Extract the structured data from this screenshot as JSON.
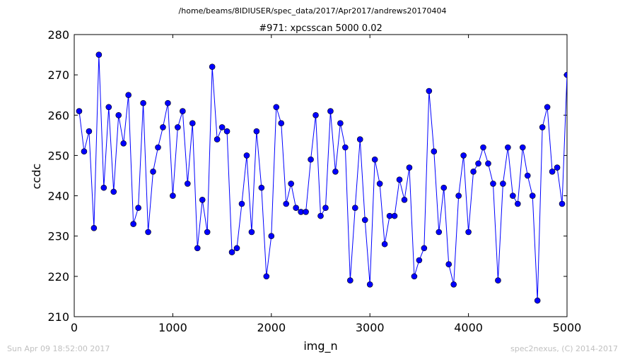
{
  "suptitle": "/home/beams/8IDIUSER/spec_data/2017/Apr2017/andrews20170404",
  "footer": {
    "left": "Sun Apr 09 18:52:00 2017",
    "right": "spec2nexus, (C) 2014-2017"
  },
  "colors": {
    "series": "#0000ff",
    "axes": "#000000",
    "footer": "#c0c0c0"
  },
  "chart_data": {
    "type": "line",
    "title": "#971: xpcsscan 5000 0.02",
    "xlabel": "img_n",
    "ylabel": "ccdc",
    "xlim": [
      0,
      5000
    ],
    "ylim": [
      210,
      280
    ],
    "xticks": [
      0,
      1000,
      2000,
      3000,
      4000,
      5000
    ],
    "yticks": [
      210,
      220,
      230,
      240,
      250,
      260,
      270,
      280
    ],
    "grid": false,
    "marker": "circle",
    "series": [
      {
        "x": [
          50,
          100,
          150,
          200,
          250,
          300,
          350,
          400,
          450,
          500,
          550,
          600,
          650,
          700,
          750,
          800,
          850,
          900,
          950,
          1000,
          1050,
          1100,
          1150,
          1200,
          1250,
          1300,
          1350,
          1400,
          1450,
          1500,
          1550,
          1600,
          1650,
          1700,
          1750,
          1800,
          1850,
          1900,
          1950,
          2000,
          2050,
          2100,
          2150,
          2200,
          2250,
          2300,
          2350,
          2400,
          2450,
          2500,
          2550,
          2600,
          2650,
          2700,
          2750,
          2800,
          2850,
          2900,
          2950,
          3000,
          3050,
          3100,
          3150,
          3200,
          3250,
          3300,
          3350,
          3400,
          3450,
          3500,
          3550,
          3600,
          3650,
          3700,
          3750,
          3800,
          3850,
          3900,
          3950,
          4000,
          4050,
          4100,
          4150,
          4200,
          4250,
          4300,
          4350,
          4400,
          4450,
          4500,
          4550,
          4600,
          4650,
          4700,
          4750,
          4800,
          4850,
          4900,
          4950,
          5000
        ],
        "y": [
          261,
          251,
          256,
          232,
          275,
          242,
          262,
          241,
          260,
          253,
          265,
          233,
          237,
          263,
          231,
          246,
          252,
          257,
          263,
          240,
          257,
          261,
          243,
          258,
          227,
          239,
          231,
          272,
          254,
          257,
          256,
          226,
          227,
          238,
          250,
          231,
          256,
          242,
          220,
          230,
          262,
          258,
          238,
          243,
          237,
          236,
          236,
          249,
          260,
          235,
          237,
          261,
          246,
          258,
          252,
          219,
          237,
          254,
          234,
          218,
          249,
          243,
          228,
          235,
          235,
          244,
          239,
          247,
          220,
          224,
          227,
          266,
          251,
          231,
          242,
          223,
          218,
          240,
          250,
          231,
          246,
          248,
          252,
          248,
          243,
          219,
          243,
          252,
          240,
          238,
          252,
          245,
          240,
          214,
          257,
          262,
          246,
          247,
          238,
          270
        ]
      }
    ]
  }
}
